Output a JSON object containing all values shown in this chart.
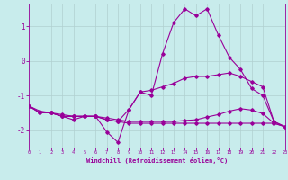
{
  "xlabel": "Windchill (Refroidissement éolien,°C)",
  "ylabel": "",
  "bg_color": "#c8ecec",
  "line_color": "#990099",
  "grid_color": "#b0d0d0",
  "xlim": [
    0,
    23
  ],
  "ylim": [
    -2.5,
    1.65
  ],
  "xticks": [
    0,
    1,
    2,
    3,
    4,
    5,
    6,
    7,
    8,
    9,
    10,
    11,
    12,
    13,
    14,
    15,
    16,
    17,
    18,
    19,
    20,
    21,
    22,
    23
  ],
  "yticks": [
    -2,
    -1,
    0,
    1
  ],
  "lines": [
    {
      "x": [
        0,
        1,
        2,
        3,
        4,
        5,
        6,
        7,
        8,
        9,
        10,
        11,
        12,
        13,
        14,
        15,
        16,
        17,
        18,
        19,
        20,
        21,
        22,
        23
      ],
      "y": [
        -1.3,
        -1.5,
        -1.5,
        -1.6,
        -1.7,
        -1.6,
        -1.6,
        -2.05,
        -2.35,
        -1.4,
        -0.9,
        -1.0,
        0.2,
        1.1,
        1.5,
        1.3,
        1.5,
        0.75,
        0.1,
        -0.25,
        -0.8,
        -1.0,
        -1.75,
        -1.9
      ]
    },
    {
      "x": [
        0,
        1,
        2,
        3,
        4,
        5,
        6,
        7,
        8,
        9,
        10,
        11,
        12,
        13,
        14,
        15,
        16,
        17,
        18,
        19,
        20,
        21,
        22,
        23
      ],
      "y": [
        -1.3,
        -1.5,
        -1.5,
        -1.6,
        -1.6,
        -1.6,
        -1.6,
        -1.7,
        -1.75,
        -1.4,
        -0.9,
        -0.85,
        -0.75,
        -0.65,
        -0.5,
        -0.45,
        -0.45,
        -0.4,
        -0.35,
        -0.45,
        -0.6,
        -0.75,
        -1.75,
        -1.9
      ]
    },
    {
      "x": [
        0,
        1,
        2,
        3,
        4,
        5,
        6,
        7,
        8,
        9,
        10,
        11,
        12,
        13,
        14,
        15,
        16,
        17,
        18,
        19,
        20,
        21,
        22,
        23
      ],
      "y": [
        -1.3,
        -1.5,
        -1.5,
        -1.6,
        -1.6,
        -1.6,
        -1.6,
        -1.7,
        -1.75,
        -1.8,
        -1.8,
        -1.8,
        -1.8,
        -1.8,
        -1.8,
        -1.8,
        -1.8,
        -1.8,
        -1.8,
        -1.8,
        -1.8,
        -1.8,
        -1.8,
        -1.9
      ]
    },
    {
      "x": [
        0,
        1,
        2,
        3,
        4,
        5,
        6,
        7,
        8,
        9,
        10,
        11,
        12,
        13,
        14,
        15,
        16,
        17,
        18,
        19,
        20,
        21,
        22,
        23
      ],
      "y": [
        -1.3,
        -1.45,
        -1.5,
        -1.55,
        -1.6,
        -1.6,
        -1.6,
        -1.65,
        -1.7,
        -1.75,
        -1.75,
        -1.75,
        -1.75,
        -1.75,
        -1.72,
        -1.7,
        -1.62,
        -1.55,
        -1.45,
        -1.38,
        -1.42,
        -1.52,
        -1.8,
        -1.9
      ]
    }
  ]
}
